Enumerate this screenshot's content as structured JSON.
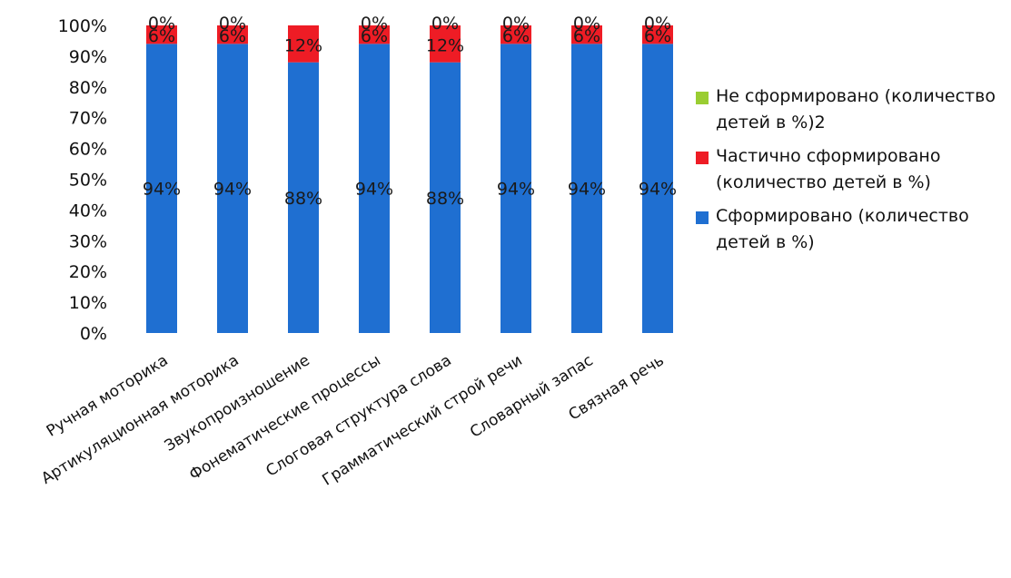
{
  "chart_data": {
    "type": "bar",
    "stacked": true,
    "categories": [
      "Ручная моторика",
      "Артикуляционная моторика",
      "Звукопроизношение",
      "Фонематические процессы",
      "Слоговая структура слова",
      "Грамматический строй речи",
      "Словарный запас",
      "Связная речь"
    ],
    "series": [
      {
        "name": "Сформировано (количество детей в %)",
        "color": "#1f6fd1",
        "values": [
          94,
          94,
          88,
          94,
          88,
          94,
          94,
          94
        ],
        "labels": [
          "94%",
          "94%",
          "88%",
          "94%",
          "88%",
          "94%",
          "94%",
          "94%"
        ]
      },
      {
        "name": "Частично сформировано (количество детей в %)",
        "color": "#ee1c25",
        "values": [
          6,
          6,
          12,
          6,
          12,
          6,
          6,
          6
        ],
        "labels": [
          "6%",
          "6%",
          "12%",
          "6%",
          "12%",
          "6%",
          "6%",
          "6%"
        ]
      },
      {
        "name": "Не сформировано (количество детей в %)2",
        "color": "#9acd32",
        "values": [
          0,
          0,
          0,
          0,
          0,
          0,
          0,
          0
        ],
        "labels": [
          "0%",
          "0%",
          "",
          "0%",
          "0%",
          "0%",
          "0%",
          "0%"
        ]
      }
    ],
    "y_ticks": [
      "0%",
      "10%",
      "20%",
      "30%",
      "40%",
      "50%",
      "60%",
      "70%",
      "80%",
      "90%",
      "100%"
    ],
    "ylim": [
      0,
      100
    ],
    "grid": false,
    "legend_position": "right",
    "title": "",
    "xlabel": "",
    "ylabel": ""
  }
}
